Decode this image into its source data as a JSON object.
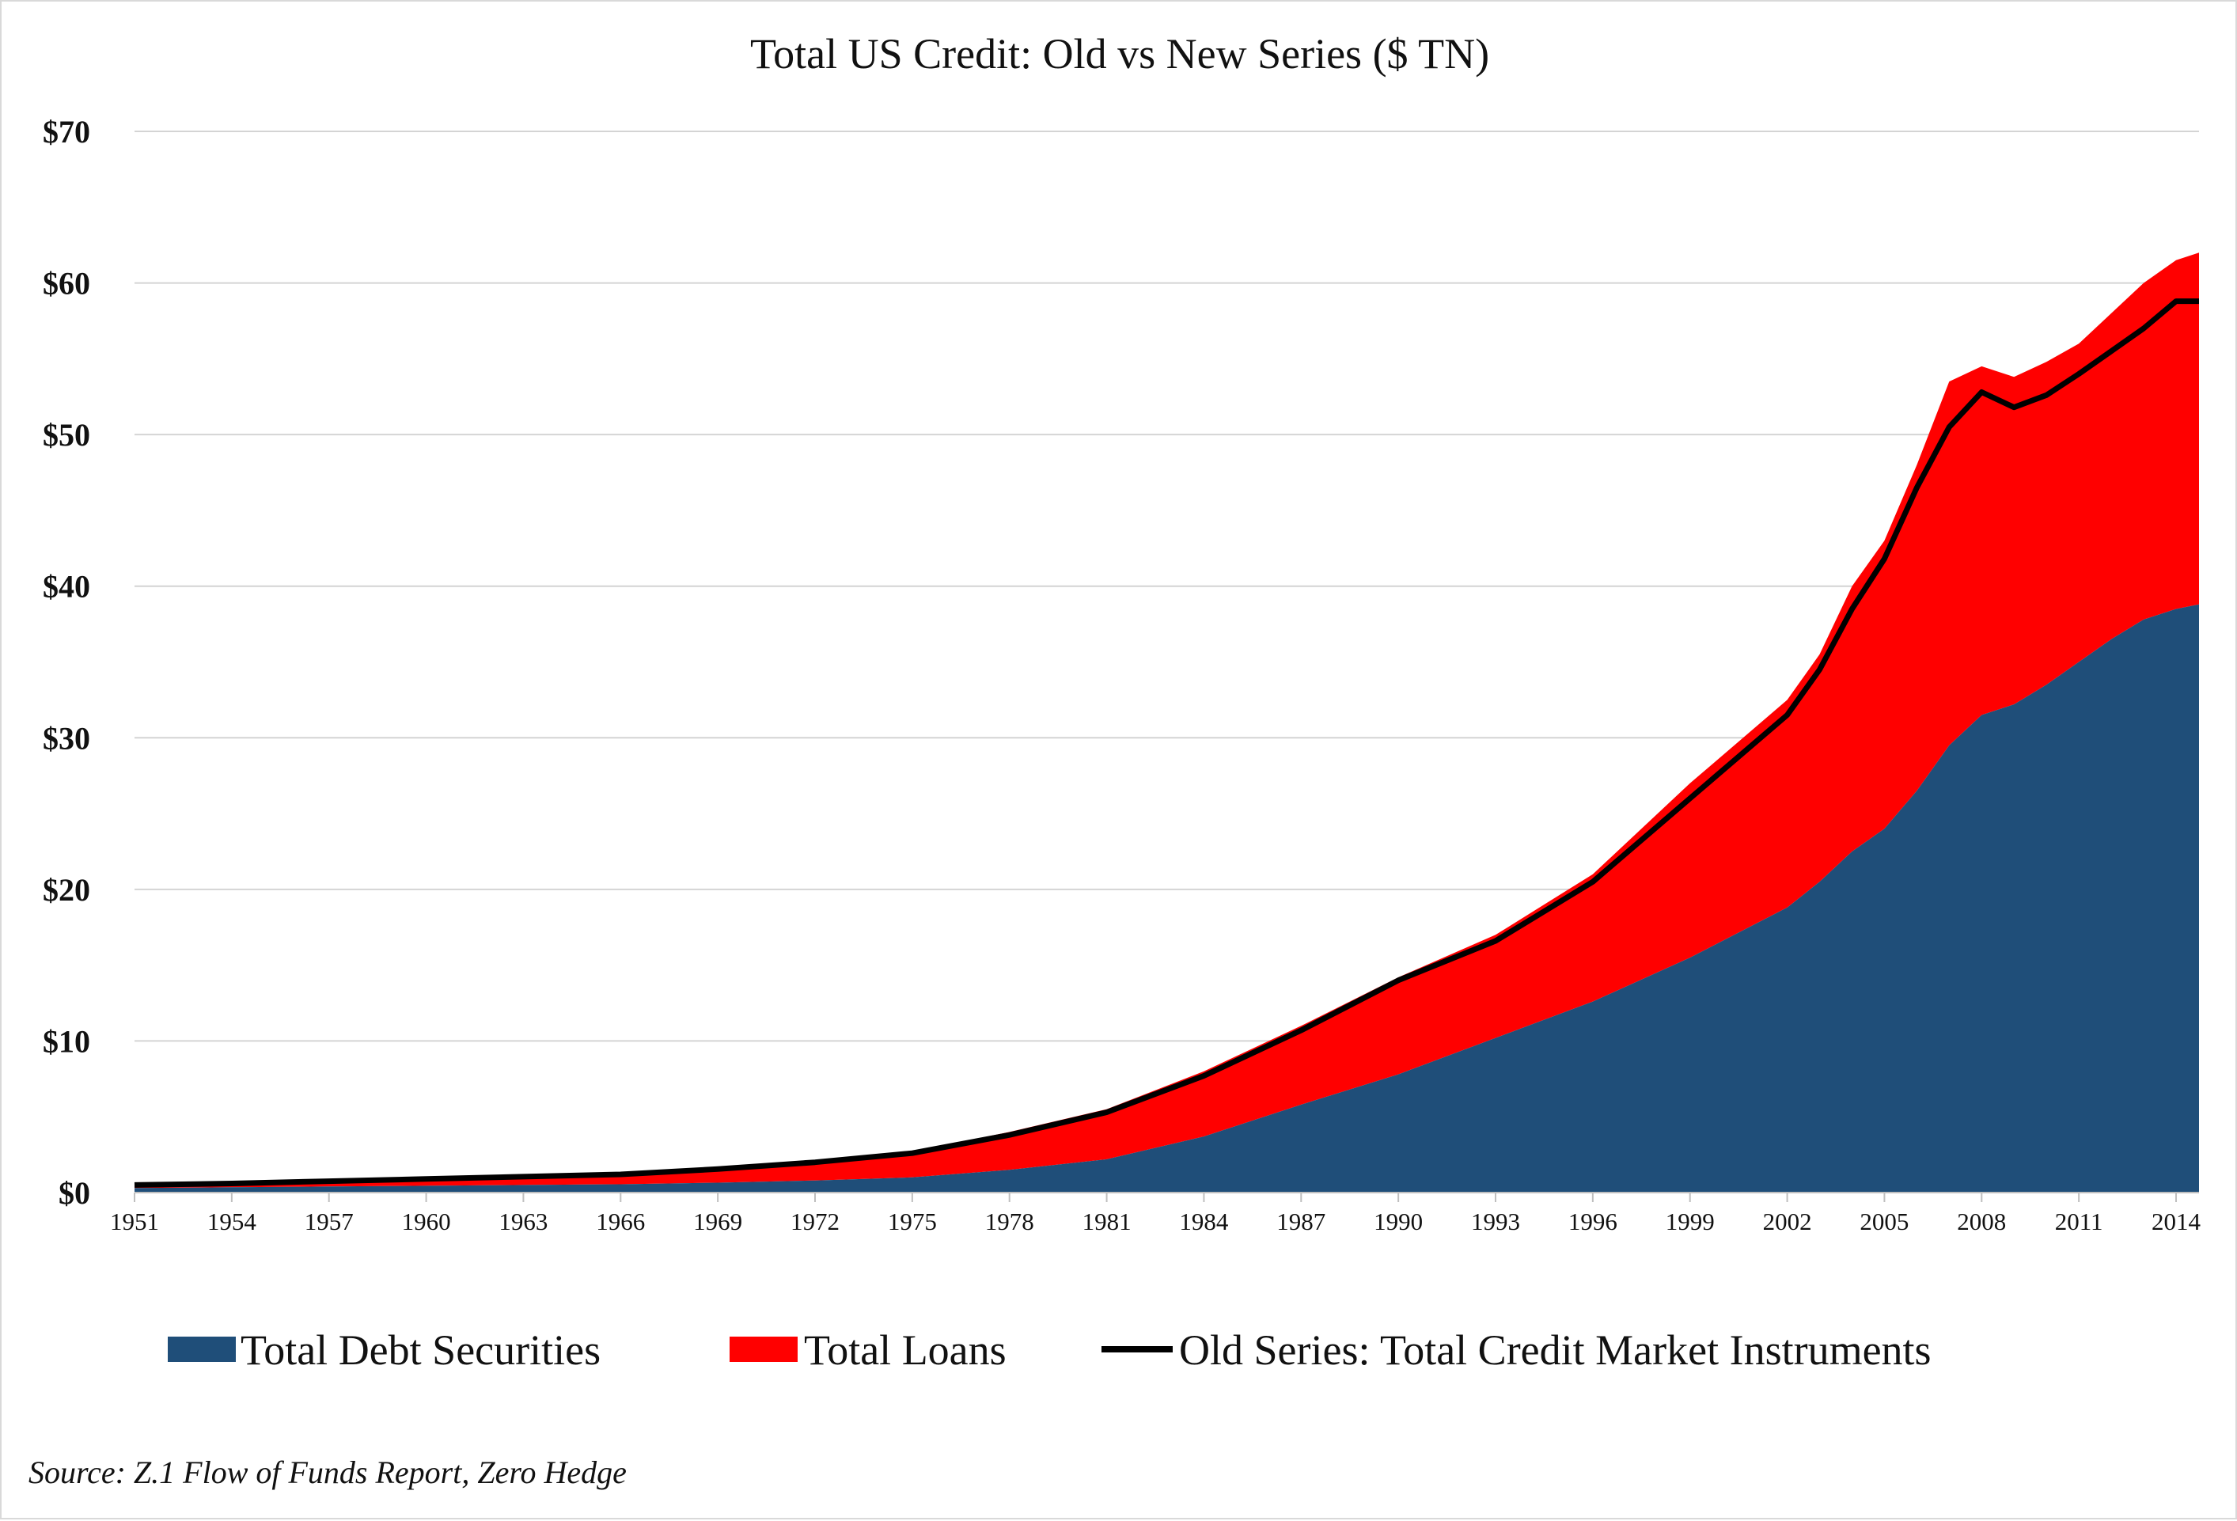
{
  "chart_data": {
    "type": "area",
    "title": "Total US Credit: Old vs New Series ($ TN)",
    "xlabel": "",
    "ylabel": "",
    "xlim": [
      1951,
      2014.75
    ],
    "ylim": [
      0,
      70
    ],
    "grid": true,
    "legend_placement": "bottom",
    "y_ticks": [
      "$0",
      "$10",
      "$20",
      "$30",
      "$40",
      "$50",
      "$60",
      "$70"
    ],
    "y_tick_values": [
      0,
      10,
      20,
      30,
      40,
      50,
      60,
      70
    ],
    "x_ticks": [
      "1951",
      "1954",
      "1957",
      "1960",
      "1963",
      "1966",
      "1969",
      "1972",
      "1975",
      "1978",
      "1981",
      "1984",
      "1987",
      "1990",
      "1993",
      "1996",
      "1999",
      "2002",
      "2005",
      "2008",
      "2011",
      "2014"
    ],
    "x": [
      1951,
      1954,
      1957,
      1960,
      1963,
      1966,
      1969,
      1972,
      1975,
      1978,
      1981,
      1984,
      1987,
      1990,
      1993,
      1996,
      1999,
      2002,
      2003,
      2004,
      2005,
      2006,
      2007,
      2008,
      2009,
      2010,
      2011,
      2012,
      2013,
      2014,
      2014.75
    ],
    "series": [
      {
        "name": "Total Debt Securities",
        "kind": "stacked-area",
        "color": "#1f4e79",
        "values": [
          0.3,
          0.35,
          0.4,
          0.45,
          0.5,
          0.55,
          0.65,
          0.8,
          1.0,
          1.5,
          2.2,
          3.7,
          5.8,
          7.8,
          10.2,
          12.6,
          15.5,
          18.8,
          20.5,
          22.5,
          24.0,
          26.5,
          29.5,
          31.5,
          32.2,
          33.5,
          35.0,
          36.5,
          37.8,
          38.5,
          38.8
        ]
      },
      {
        "name": "Total Loans",
        "kind": "stacked-area",
        "color": "#ff0000",
        "values": [
          0.2,
          0.3,
          0.4,
          0.5,
          0.6,
          0.7,
          0.95,
          1.3,
          1.7,
          2.5,
          3.3,
          4.3,
          5.2,
          6.4,
          6.8,
          8.4,
          11.5,
          13.7,
          15.0,
          17.5,
          19.0,
          21.5,
          24.0,
          23.0,
          21.6,
          21.3,
          21.0,
          21.5,
          22.2,
          23.0,
          23.2
        ]
      },
      {
        "name": "Old Series: Total Credit Market Instruments",
        "kind": "line",
        "color": "#000000",
        "values": [
          0.5,
          0.6,
          0.75,
          0.9,
          1.05,
          1.2,
          1.55,
          2.0,
          2.6,
          3.8,
          5.3,
          7.7,
          10.7,
          14.0,
          16.6,
          20.5,
          26.0,
          31.5,
          34.5,
          38.5,
          41.8,
          46.5,
          50.5,
          52.8,
          51.8,
          52.6,
          54.0,
          55.5,
          57.0,
          58.8,
          58.8
        ]
      }
    ],
    "source": "Source: Z.1 Flow of Funds Report, Zero Hedge"
  }
}
